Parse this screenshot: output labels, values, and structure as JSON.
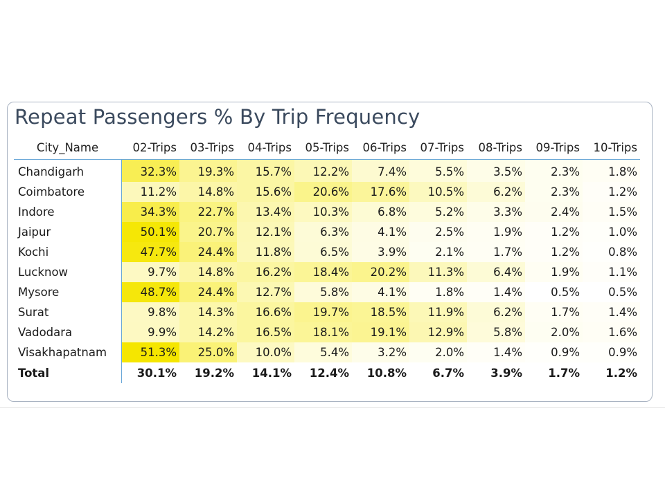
{
  "chart_data": {
    "type": "heatmap",
    "title": "Repeat Passengers % By Trip Frequency",
    "row_header": "City_Name",
    "columns": [
      "02-Trips",
      "03-Trips",
      "04-Trips",
      "05-Trips",
      "06-Trips",
      "07-Trips",
      "08-Trips",
      "09-Trips",
      "10-Trips"
    ],
    "rows": [
      {
        "name": "Chandigarh",
        "values": [
          32.3,
          19.3,
          15.7,
          12.2,
          7.4,
          5.5,
          3.5,
          2.3,
          1.8
        ]
      },
      {
        "name": "Coimbatore",
        "values": [
          11.2,
          14.8,
          15.6,
          20.6,
          17.6,
          10.5,
          6.2,
          2.3,
          1.2
        ]
      },
      {
        "name": "Indore",
        "values": [
          34.3,
          22.7,
          13.4,
          10.3,
          6.8,
          5.2,
          3.3,
          2.4,
          1.5
        ]
      },
      {
        "name": "Jaipur",
        "values": [
          50.1,
          20.7,
          12.1,
          6.3,
          4.1,
          2.5,
          1.9,
          1.2,
          1.0
        ]
      },
      {
        "name": "Kochi",
        "values": [
          47.7,
          24.4,
          11.8,
          6.5,
          3.9,
          2.1,
          1.7,
          1.2,
          0.8
        ]
      },
      {
        "name": "Lucknow",
        "values": [
          9.7,
          14.8,
          16.2,
          18.4,
          20.2,
          11.3,
          6.4,
          1.9,
          1.1
        ]
      },
      {
        "name": "Mysore",
        "values": [
          48.7,
          24.4,
          12.7,
          5.8,
          4.1,
          1.8,
          1.4,
          0.5,
          0.5
        ]
      },
      {
        "name": "Surat",
        "values": [
          9.8,
          14.3,
          16.6,
          19.7,
          18.5,
          11.9,
          6.2,
          1.7,
          1.4
        ]
      },
      {
        "name": "Vadodara",
        "values": [
          9.9,
          14.2,
          16.5,
          18.1,
          19.1,
          12.9,
          5.8,
          2.0,
          1.6
        ]
      },
      {
        "name": "Visakhapatnam",
        "values": [
          51.3,
          25.0,
          10.0,
          5.4,
          3.2,
          2.0,
          1.4,
          0.9,
          0.9
        ]
      }
    ],
    "total": {
      "name": "Total",
      "values": [
        30.1,
        19.2,
        14.1,
        12.4,
        10.8,
        6.7,
        3.9,
        1.7,
        1.2
      ]
    },
    "value_suffix": "%",
    "color_scale": {
      "low": "#ffffff",
      "high": "#f5e600"
    }
  }
}
